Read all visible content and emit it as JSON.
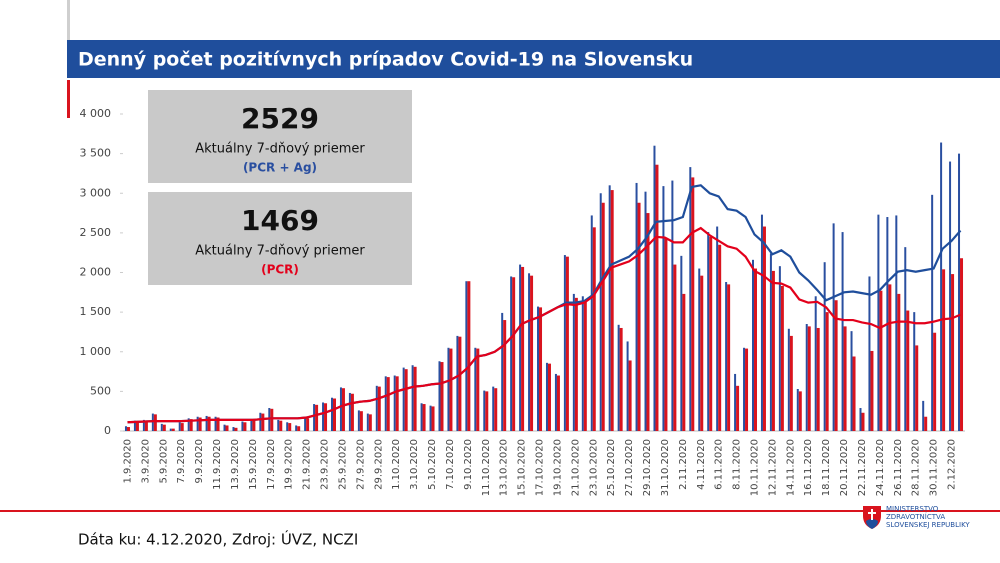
{
  "chart_data": {
    "type": "bar",
    "title": "Denný počet pozitívnych prípadov Covid-19 na Slovensku",
    "categories": [
      "1.9.2020",
      null,
      "3.9.2020",
      null,
      "5.9.2020",
      null,
      "7.9.2020",
      null,
      "9.9.2020",
      null,
      "11.9.2020",
      null,
      "13.9.2020",
      null,
      "15.9.2020",
      null,
      "17.9.2020",
      null,
      "19.9.2020",
      null,
      "21.9.2020",
      null,
      "23.9.2020",
      null,
      "25.9.2020",
      null,
      "27.9.2020",
      null,
      "29.9.2020",
      null,
      "1.10.2020",
      null,
      "3.10.2020",
      null,
      "5.10.2020",
      null,
      "7.10.2020",
      null,
      "9.10.2020",
      null,
      "11.10.2020",
      null,
      "13.10.2020",
      null,
      "15.10.2020",
      null,
      "17.10.2020",
      null,
      "19.10.2020",
      null,
      "21.10.2020",
      null,
      "23.10.2020",
      null,
      "25.10.2020",
      null,
      "27.10.2020",
      null,
      "29.10.2020",
      null,
      "31.10.2020",
      null,
      "2.11.2020",
      null,
      "4.11.2020",
      null,
      "6.11.2020",
      null,
      "8.11.2020",
      null,
      "10.11.2020",
      null,
      "12.11.2020",
      null,
      "14.11.2020",
      null,
      "16.11.2020",
      null,
      "18.11.2020",
      null,
      "20.11.2020",
      null,
      "22.11.2020",
      null,
      "24.11.2020",
      null,
      "26.11.2020",
      null,
      "28.11.2020",
      null,
      "30.11.2020",
      null,
      "2.12.2020",
      null
    ],
    "series": [
      {
        "color": "#2a4fa0",
        "values": [
          60,
          130,
          140,
          220,
          90,
          30,
          110,
          160,
          180,
          190,
          180,
          80,
          50,
          120,
          150,
          230,
          290,
          140,
          110,
          70,
          170,
          340,
          360,
          420,
          550,
          480,
          260,
          220,
          570,
          690,
          700,
          800,
          830,
          350,
          320,
          880,
          1050,
          1200,
          1890,
          1050,
          510,
          560,
          1490,
          1950,
          2100,
          1990,
          1570,
          860,
          720,
          2220,
          1730,
          1700,
          2720,
          3000,
          3100,
          1340,
          1130,
          3130,
          3020,
          3600,
          3090,
          3160,
          2210,
          3330,
          2050,
          2510,
          2580,
          1880,
          720,
          1050,
          2160,
          2730,
          2240,
          2080,
          1290,
          530,
          1350,
          1700,
          2130,
          2620,
          2510,
          1260,
          290,
          1950,
          2730,
          2700,
          2720,
          2320,
          1500,
          380,
          2980,
          3640,
          3400,
          3500
        ]
      },
      {
        "color": "#d9141e",
        "values": [
          50,
          120,
          130,
          210,
          80,
          30,
          100,
          150,
          170,
          180,
          170,
          70,
          40,
          110,
          140,
          220,
          280,
          130,
          100,
          60,
          160,
          330,
          350,
          410,
          540,
          470,
          250,
          210,
          560,
          680,
          690,
          780,
          810,
          340,
          310,
          870,
          1040,
          1190,
          1890,
          1040,
          500,
          540,
          1400,
          1940,
          2070,
          1960,
          1560,
          850,
          700,
          2200,
          1680,
          1650,
          2570,
          2880,
          3040,
          1300,
          890,
          2880,
          2750,
          3360,
          2440,
          2100,
          1730,
          3200,
          1960,
          2450,
          2350,
          1850,
          570,
          1040,
          2050,
          2580,
          2020,
          1830,
          1200,
          500,
          1320,
          1300,
          1500,
          1650,
          1320,
          940,
          230,
          1010,
          1770,
          1850,
          1730,
          1520,
          1080,
          180,
          1240,
          2040,
          1980,
          2180
        ]
      },
      {
        "type": "line",
        "color": "#1f4e9c",
        "values": [
          110,
          115,
          120,
          125,
          125,
          125,
          125,
          130,
          135,
          140,
          140,
          140,
          140,
          140,
          140,
          150,
          160,
          160,
          160,
          160,
          170,
          200,
          230,
          270,
          320,
          350,
          370,
          380,
          410,
          450,
          500,
          530,
          560,
          570,
          590,
          600,
          640,
          700,
          800,
          940,
          960,
          1000,
          1080,
          1200,
          1350,
          1400,
          1440,
          1500,
          1560,
          1620,
          1620,
          1640,
          1720,
          1920,
          2100,
          2150,
          2200,
          2300,
          2450,
          2640,
          2650,
          2660,
          2700,
          3080,
          3100,
          3000,
          2960,
          2800,
          2780,
          2700,
          2480,
          2380,
          2230,
          2280,
          2200,
          2000,
          1900,
          1780,
          1650,
          1700,
          1750,
          1760,
          1740,
          1720,
          1780,
          1900,
          2010,
          2030,
          2010,
          2030,
          2050,
          2300,
          2400,
          2529
        ]
      },
      {
        "type": "line",
        "color": "#e3001b",
        "values": [
          110,
          115,
          120,
          125,
          125,
          125,
          125,
          130,
          135,
          140,
          140,
          140,
          140,
          140,
          140,
          150,
          160,
          160,
          160,
          160,
          170,
          200,
          230,
          270,
          320,
          350,
          370,
          380,
          410,
          450,
          500,
          530,
          560,
          570,
          590,
          600,
          640,
          700,
          800,
          940,
          960,
          1000,
          1080,
          1200,
          1350,
          1400,
          1440,
          1500,
          1560,
          1600,
          1590,
          1620,
          1700,
          1880,
          2060,
          2100,
          2140,
          2220,
          2330,
          2450,
          2440,
          2380,
          2380,
          2500,
          2560,
          2470,
          2400,
          2330,
          2300,
          2200,
          2020,
          1960,
          1870,
          1860,
          1810,
          1660,
          1620,
          1630,
          1560,
          1420,
          1400,
          1400,
          1370,
          1350,
          1300,
          1360,
          1380,
          1380,
          1360,
          1360,
          1380,
          1410,
          1420,
          1469
        ]
      }
    ],
    "ylim": [
      0,
      4000
    ],
    "yticks": [
      0,
      500,
      {
        "value": 1000,
        "label": "1 000"
      },
      {
        "value": 1500,
        "label": "1 500"
      },
      {
        "value": 2000,
        "label": "2 000"
      },
      {
        "value": 2500,
        "label": "2 500"
      },
      {
        "value": 3000,
        "label": "3 000"
      },
      {
        "value": 3500,
        "label": "3 500"
      },
      {
        "value": 4000,
        "label": "4 000"
      }
    ],
    "summary_boxes": [
      {
        "value": 2529,
        "label": "Aktuálny 7-dňový priemer",
        "note": "(PCR + Ag)",
        "note_color": "#2a4fa0"
      },
      {
        "value": 1469,
        "label": "Aktuálny 7-dňový priemer",
        "note": "(PCR)",
        "note_color": "#e3001b"
      }
    ]
  },
  "footer": {
    "source": "Dáta ku: 4.12.2020, Zdroj: ÚVZ, NCZI",
    "logo": [
      "MINISTERSTVO",
      "ZDRAVOTNÍCTVA",
      "SLOVENSKEJ REPUBLIKY"
    ]
  }
}
